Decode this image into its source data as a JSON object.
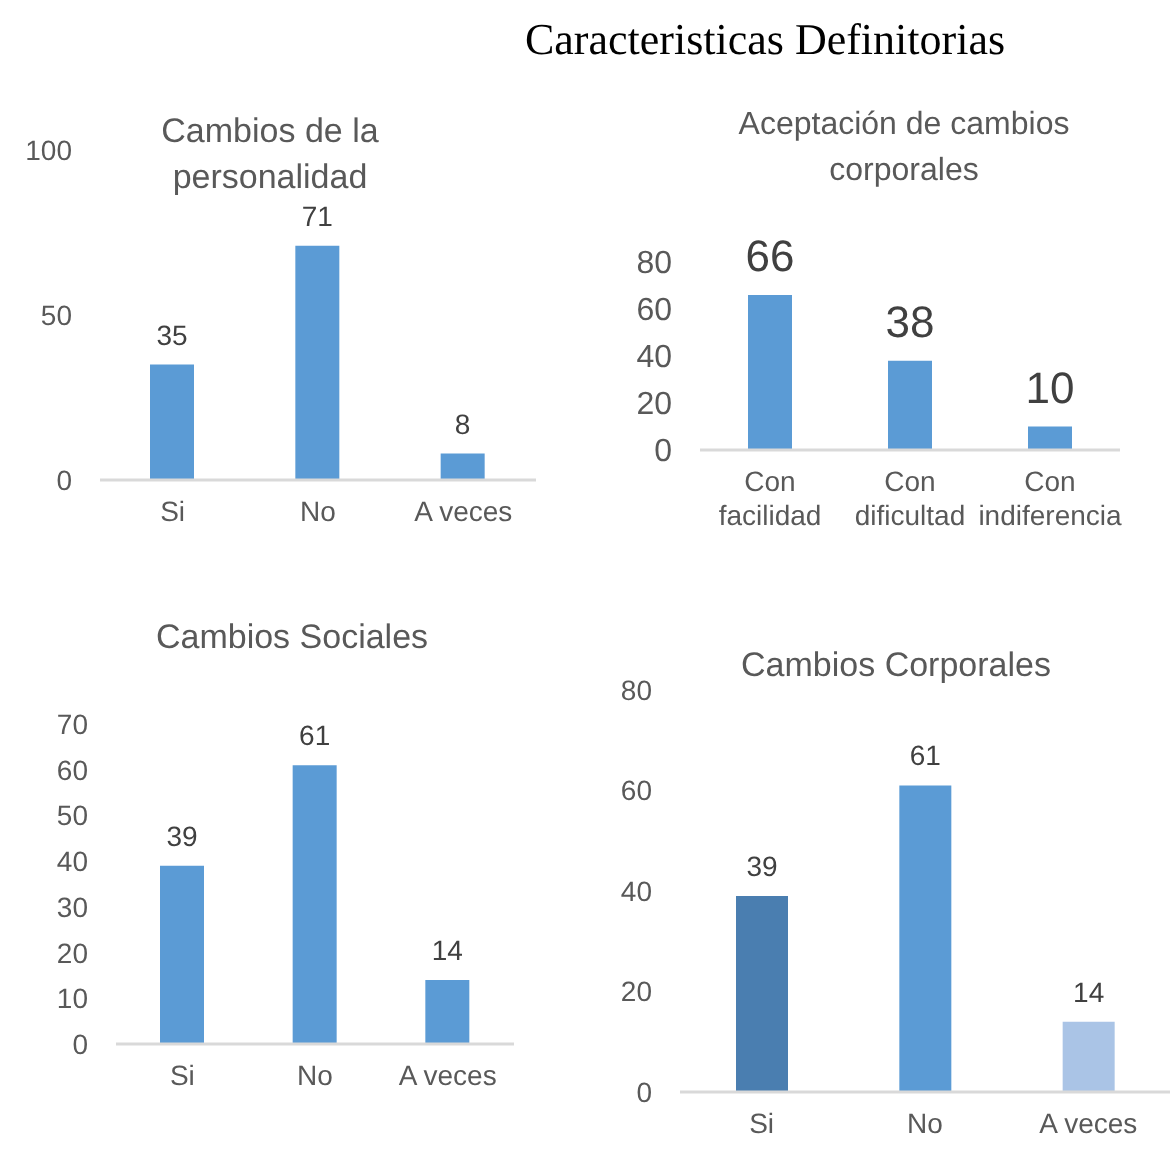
{
  "chart_data": [
    {
      "type": "other",
      "title": "Caracteristicas Definitorias"
    },
    {
      "type": "bar",
      "title": "Cambios de la personalidad",
      "categories": [
        "Si",
        "No",
        "A veces"
      ],
      "values": [
        35,
        71,
        8
      ],
      "color": "#5b9bd5",
      "ylim": [
        0,
        100
      ],
      "yticks": [
        0,
        50,
        100
      ],
      "data_labels": true
    },
    {
      "type": "bar",
      "title": "Aceptación de cambios corporales",
      "categories": [
        "Con facilidad",
        "Con dificultad",
        "Con indiferencia"
      ],
      "values": [
        66,
        38,
        10
      ],
      "color": "#5b9bd5",
      "ylim": [
        0,
        80
      ],
      "yticks": [
        0,
        20,
        40,
        60,
        80
      ],
      "data_labels": true
    },
    {
      "type": "bar",
      "title": "Cambios Sociales",
      "categories": [
        "Si",
        "No",
        "A veces"
      ],
      "values": [
        39,
        61,
        14
      ],
      "color": "#5b9bd5",
      "ylim": [
        0,
        70
      ],
      "yticks": [
        0,
        10,
        20,
        30,
        40,
        50,
        60,
        70
      ],
      "data_labels": true
    },
    {
      "type": "bar",
      "title": "Cambios Corporales",
      "categories": [
        "Si",
        "No",
        "A veces"
      ],
      "values": [
        39,
        61,
        14
      ],
      "colors": [
        "#4a7eb0",
        "#5b9bd5",
        "#aac4e6"
      ],
      "ylim": [
        0,
        80
      ],
      "yticks": [
        0,
        20,
        40,
        60,
        80
      ],
      "data_labels": true
    }
  ]
}
